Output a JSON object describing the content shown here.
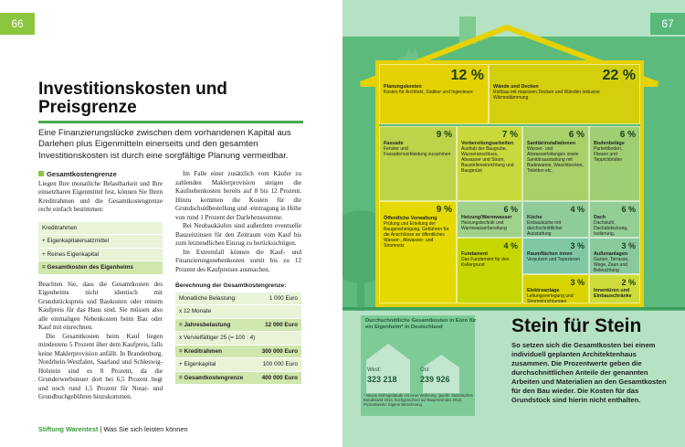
{
  "left_page": {
    "page_number": "66",
    "title": "Investitionskosten und Preisgrenze",
    "intro": "Eine Finanzierungslücke zwischen dem vorhandenen Kapital aus Darlehen plus Eigenmitteln einerseits und den gesamten Investitionskosten ist durch eine sorgfältige Planung vermeidbar.",
    "sidebar_heading": "Gesamtkostengrenze",
    "column_1": [
      "Liegen Ihre monatliche Belastbarkeit und Ihre einsetzbaren Eigenmittel fest, können Sie Ihren Kreditrahmen und die Gesamtkostengrenze recht einfach bestimmen:"
    ],
    "formula_rows": [
      "Kreditrahmen",
      "+ Eigenkapitalersatzmittel",
      "+ Reines Eigenkapital",
      "= Gesamtkosten des Eigenheims"
    ],
    "column_1_after": [
      "Beachten Sie, dass die Gesamtkosten des Eigenheims nicht identisch mit Grundstückspreis und Baukosten oder reinem Kaufpreis für das Haus sind. Sie müssen also alle einmaligen Nebenkosten beim Bau oder Kauf mit einrechnen.",
      "Die Gesamtkosten beim Kauf liegen mindestens 5 Prozent über dem Kaufpreis, falls keine Maklerprovision anfällt. In Brandenburg, Nordrhein-Westfalen, Saarland und Schleswig-Holstein sind es 8 Prozent, da die Grunderwerbsteuer dort bei 6,5 Prozent liegt und noch rund 1,5 Prozent für Notar- und Grundbuchgebühren hinzukommen."
    ],
    "column_2": [
      "Im Falle einer zusätzlich vom Käufer zu zahlenden Maklerprovision steigen die Kaufnebenkosten bereits auf 8 bis 12 Prozent. Hinzu kommen die Kosten für die Grundschuldbestellung und -eintragung in Höhe von rund 1 Prozent der Darlehenssumme.",
      "Bei Neubaukäufen sind außerdem eventuelle Bauzeitzinsen für den Zeitraum vom Kauf bis zum letztendlichen Einzug zu berücksichtigen.",
      "Im Extremfall können die Kauf- und Finanzierungsnebenkosten somit bis zu 12 Prozent des Kaufpreises ausmachen."
    ],
    "calc_title": "Berechnung der Gesamtkostengrenze:",
    "calc_rows": [
      [
        "Monatliche Belastung:",
        "1 000 Euro"
      ],
      [
        "x 12 Monate",
        ""
      ],
      [
        "= Jahresbelastung",
        "12 000 Euro"
      ],
      [
        "x Vervielfältiger 25 (= 100 : 4)",
        ""
      ],
      [
        "= Kreditrahmen",
        "300 000 Euro"
      ],
      [
        "+ Eigenkapital",
        "100 000 Euro"
      ],
      [
        "= Gesamtkostengrenze",
        "400 000 Euro"
      ]
    ],
    "footer": {
      "brand": "Stiftung Warentest",
      "section": "Was Sie sich leisten können"
    }
  },
  "right_page": {
    "page_number": "67",
    "cost_items": [
      {
        "share": "12 %",
        "title": "Planungskosten",
        "text": "Kosten für Architekt, Statiker und Ingenieure"
      },
      {
        "share": "22 %",
        "title": "Wände und Decken",
        "text": "Rohbau mit massiven Decken und Wänden inklusive Wärmedämmung"
      },
      {
        "share": "9 %",
        "title": "Fassade",
        "text": "Fenster und Fassadenverkleidung zusammen"
      },
      {
        "share": "7 %",
        "title": "Vorbereitungsarbeiten",
        "text": "Aushub der Baugrube, Wasseranschluss, Abwasser und Strom, Baustelleneinrichtung und Baugerüst"
      },
      {
        "share": "6 %",
        "title": "Sanitärinstallationen",
        "text": "Wasser- und Abwasserleitungen sowie Sanitärausstattung mit Badewanne, Waschbecken, Toiletten etc."
      },
      {
        "share": "6 %",
        "title": "Bodenbeläge",
        "text": "Parkettboden, Fliesen und Teppichböden"
      },
      {
        "share": "9 %",
        "title": "Öffentliche Verwaltung",
        "text": "Prüfung und Erteilung der Baugenehmigung, Gebühren für die Anschlüsse an öffentliches Wasser-, Abwasser- und Stromnetz"
      },
      {
        "share": "6 %",
        "title": "Heizung/Warmwasser",
        "text": "Heizungstechnik und Warmwasserbereitung"
      },
      {
        "share": "4 %",
        "title": "Fundament",
        "text": "Das Fundament für den Kellergrund"
      },
      {
        "share": "4 %",
        "title": "Küche",
        "text": "Einbauküche mit durchschnittlicher Ausstattung"
      },
      {
        "share": "6 %",
        "title": "Dach",
        "text": "Dachstuhl, Dachabdeckung, Isolierung, Abdichtung"
      },
      {
        "share": "3 %",
        "title": "Raumflächen innen",
        "text": "Verputzen und Tapezieren"
      },
      {
        "share": "3 %",
        "title": "Außenanlagen",
        "text": "Garten, Terrasse, Wege, Zaun und Beleuchtung"
      },
      {
        "share": "3 %",
        "title": "Elektroanlage",
        "text": "Leitungsverlegung und Stromeinrichtungen"
      },
      {
        "share": "2 %",
        "title": "Innentüren und Einbauschränke"
      }
    ],
    "average_costs": {
      "title": "Durchschnittliche Gesamtkosten in Euro für ein Eigenheim* in Deutschland",
      "west_label": "West:",
      "west_value": "323 218",
      "ost_label": "Ost:",
      "ost_value": "239 926",
      "footnote": "* Neues Wohngebäude mit einer Wohnung. Quelle: Statistisches Bundesamt 2014, hochgerechnet auf Baupreisindex 2018, Prozentwerte: Eigene Berechnung"
    },
    "heading": "Stein für Stein",
    "caption": "So setzen sich die Gesamtkosten bei einem individuell geplanten Architektenhaus zusammen. Die Prozentwerte geben die durchschnittlichen Anteile der genannten Arbeiten und Materialien an den Gesamtkosten für den Bau wieder. Die Kosten für das Grundstück sind hierin nicht enthalten."
  }
}
